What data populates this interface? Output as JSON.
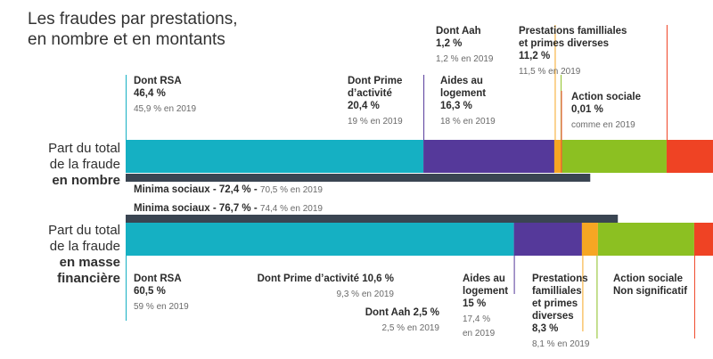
{
  "title_line1": "Les fraudes par prestations,",
  "title_line2": "en nombre et en montants",
  "rows": {
    "nombre": {
      "line1": "Part du total",
      "line2": "de la fraude",
      "line3": "en nombre"
    },
    "masse": {
      "line1": "Part du total",
      "line2": "de la fraude",
      "line3": "en masse",
      "line4": "financière"
    }
  },
  "colors": {
    "rsa": "#15b0c3",
    "prime": "#55399a",
    "aah": "#f6a623",
    "logement": "#8cc022",
    "familiales": "#ef4324",
    "action": "#ef4324",
    "minima": "#3a4552",
    "line_rsa": "#15b0c3",
    "line_prime": "#55399a",
    "line_aah": "#f6a623",
    "line_logement": "#8cc022",
    "line_familiales": "#ef4324"
  },
  "chart_data": {
    "type": "bar",
    "orientation": "horizontal-stacked",
    "categories": [
      "Part du total de la fraude en nombre",
      "Part du total de la fraude en masse financière"
    ],
    "series": [
      {
        "name": "Dont RSA",
        "values": [
          46.4,
          60.5
        ],
        "previous": [
          "45,9 % en 2019",
          "59 % en 2019"
        ]
      },
      {
        "name": "Dont Prime d'activité",
        "values": [
          20.4,
          10.6
        ],
        "previous": [
          "19 % en 2019",
          "9,3 % en 2019"
        ]
      },
      {
        "name": "Dont Aah",
        "values": [
          1.2,
          2.5
        ],
        "previous": [
          "1,2 % en 2019",
          "2,5 % en 2019"
        ]
      },
      {
        "name": "Aides au logement",
        "values": [
          16.3,
          15
        ],
        "previous": [
          "18 % en 2019",
          "17,4 % en 2019"
        ]
      },
      {
        "name": "Prestations familliales et primes diverses",
        "values": [
          11.2,
          8.3
        ],
        "previous": [
          "11,5 % en 2019",
          "8,1 % en 2019"
        ]
      },
      {
        "name": "Action sociale",
        "values": [
          0.01,
          null
        ],
        "previous": [
          "comme en 2019",
          ""
        ]
      }
    ],
    "minima_sociaux": {
      "values": [
        72.4,
        76.7
      ],
      "previous": [
        "70,5 % en 2019",
        "74,4 % en 2019"
      ]
    },
    "xlim": [
      0,
      100
    ]
  },
  "nombre": {
    "minima": {
      "label": "Minima sociaux - 72,4 % -",
      "prev": "70,5 % en 2019"
    },
    "rsa": {
      "label": "Dont RSA",
      "value": "46,4 %",
      "prev": "45,9 % en 2019"
    },
    "prime": {
      "label1": "Dont Prime",
      "label2": "d’activité",
      "value": "20,4 %",
      "prev": "19 % en 2019"
    },
    "aah": {
      "label": "Dont Aah",
      "value": "1,2 %",
      "prev": "1,2 % en 2019"
    },
    "logement": {
      "label1": "Aides au",
      "label2": "logement",
      "value": "16,3 %",
      "prev": "18 % en 2019"
    },
    "familiales": {
      "label1": "Prestations familliales",
      "label2": "et primes diverses",
      "value": "11,2 %",
      "prev": "11,5 % en 2019"
    },
    "action": {
      "label": "Action sociale",
      "value": "0,01 %",
      "prev": "comme en 2019"
    }
  },
  "masse": {
    "minima": {
      "label": "Minima sociaux - 76,7 % -",
      "prev": "74,4 % en 2019"
    },
    "rsa": {
      "label": "Dont RSA",
      "value": "60,5 %",
      "prev": "59 % en 2019"
    },
    "prime": {
      "label": "Dont Prime d’activité 10,6 %",
      "prev": "9,3 % en 2019"
    },
    "aah": {
      "label": "Dont Aah 2,5 %",
      "prev": "2,5 % en 2019"
    },
    "logement": {
      "label1": "Aides au",
      "label2": "logement",
      "value": "15 %",
      "prev1": "17,4 %",
      "prev2": "en 2019"
    },
    "familiales": {
      "label1": "Prestations",
      "label2": "familliales",
      "label3": "et primes",
      "label4": "diverses",
      "value": "8,3 %",
      "prev": "8,1 % en 2019"
    },
    "action": {
      "label1": "Action sociale",
      "label2": "Non significatif"
    }
  }
}
